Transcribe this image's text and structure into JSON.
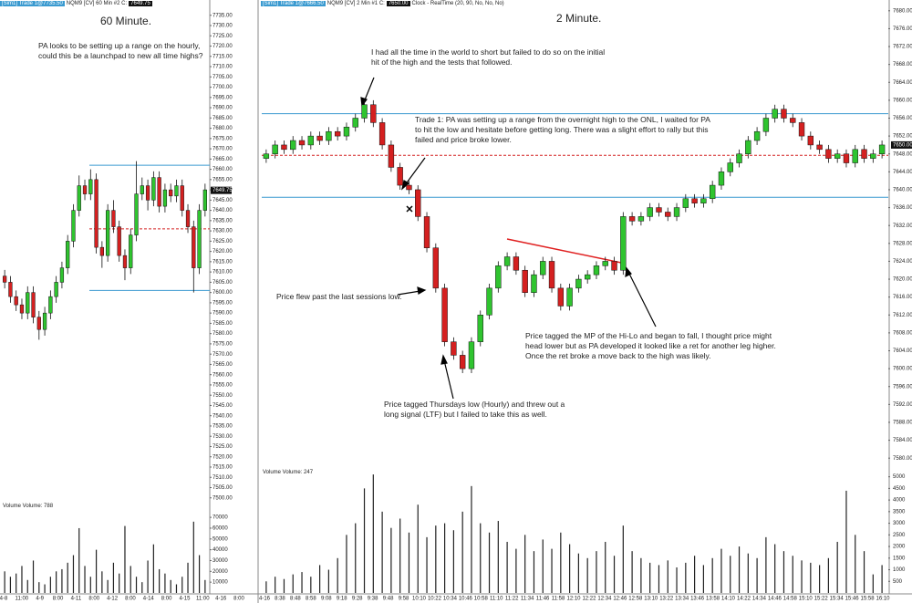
{
  "chart_data": [
    {
      "type": "candlestick",
      "title": "60 Minute.",
      "header": [
        "[Sim1] Trade 1@7735.50",
        "NQM9 [CV]  60 Min  #2  C:",
        "7649.75"
      ],
      "note": "PA looks to be setting up a range on the hourly, could this be a launchpad to new all time highs?",
      "colors": {
        "up": "#2fc42f",
        "down": "#d42020"
      },
      "open": [
        7608,
        7605,
        7598,
        7594,
        7590,
        7600,
        7588,
        7582,
        7590,
        7598,
        7605,
        7612,
        7625,
        7640,
        7652,
        7648,
        7655,
        7622,
        7618,
        7640,
        7632,
        7618,
        7612,
        7628,
        7648,
        7652,
        7645,
        7656,
        7642,
        7650,
        7647,
        7652,
        7640,
        7632,
        7612,
        7640
      ],
      "high": [
        7611,
        7608,
        7601,
        7597,
        7603,
        7603,
        7591,
        7593,
        7601,
        7608,
        7615,
        7628,
        7643,
        7657,
        7655,
        7660,
        7658,
        7625,
        7643,
        7645,
        7635,
        7621,
        7631,
        7664,
        7656,
        7655,
        7659,
        7659,
        7653,
        7653,
        7655,
        7655,
        7643,
        7635,
        7643,
        7653
      ],
      "low": [
        7602,
        7595,
        7591,
        7587,
        7587,
        7585,
        7577,
        7579,
        7587,
        7595,
        7602,
        7609,
        7622,
        7637,
        7645,
        7645,
        7619,
        7612,
        7615,
        7629,
        7615,
        7606,
        7609,
        7625,
        7645,
        7640,
        7642,
        7639,
        7639,
        7644,
        7644,
        7637,
        7629,
        7600,
        7609,
        7637
      ],
      "close": [
        7605,
        7598,
        7594,
        7590,
        7600,
        7588,
        7582,
        7590,
        7598,
        7605,
        7612,
        7625,
        7640,
        7652,
        7648,
        7655,
        7622,
        7618,
        7640,
        7632,
        7618,
        7612,
        7628,
        7648,
        7652,
        7645,
        7656,
        7642,
        7650,
        7647,
        7652,
        7640,
        7632,
        7612,
        7640,
        7650
      ],
      "ylim": [
        7499,
        7738
      ],
      "yticks": [
        {
          "value": 7500,
          "label": "7500.00"
        },
        {
          "value": 7505,
          "label": "7505.00"
        },
        {
          "value": 7510,
          "label": "7510.00"
        },
        {
          "value": 7515,
          "label": "7515.00"
        },
        {
          "value": 7520,
          "label": "7520.00"
        },
        {
          "value": 7525,
          "label": "7525.00"
        },
        {
          "value": 7530,
          "label": "7530.00"
        },
        {
          "value": 7535,
          "label": "7535.00"
        },
        {
          "value": 7540,
          "label": "7540.00"
        },
        {
          "value": 7545,
          "label": "7545.00"
        },
        {
          "value": 7550,
          "label": "7550.00"
        },
        {
          "value": 7555,
          "label": "7555.00"
        },
        {
          "value": 7560,
          "label": "7560.00"
        },
        {
          "value": 7565,
          "label": "7565.00"
        },
        {
          "value": 7570,
          "label": "7570.00"
        },
        {
          "value": 7575,
          "label": "7575.00"
        },
        {
          "value": 7580,
          "label": "7580.00"
        },
        {
          "value": 7585,
          "label": "7585.00"
        },
        {
          "value": 7590,
          "label": "7590.00"
        },
        {
          "value": 7595,
          "label": "7595.00"
        },
        {
          "value": 7600,
          "label": "7600.00"
        },
        {
          "value": 7605,
          "label": "7605.00"
        },
        {
          "value": 7610,
          "label": "7610.00"
        },
        {
          "value": 7615,
          "label": "7615.00"
        },
        {
          "value": 7620,
          "label": "7620.00"
        },
        {
          "value": 7625,
          "label": "7625.00"
        },
        {
          "value": 7630,
          "label": "7630.00"
        },
        {
          "value": 7635,
          "label": "7635.00"
        },
        {
          "value": 7640,
          "label": "7640.00"
        },
        {
          "value": 7645,
          "label": "7645.00"
        },
        {
          "value": 7650,
          "label": "7650.00"
        },
        {
          "value": 7655,
          "label": "7655.00"
        },
        {
          "value": 7660,
          "label": "7660.00"
        },
        {
          "value": 7665,
          "label": "7665.00"
        },
        {
          "value": 7670,
          "label": "7670.00"
        },
        {
          "value": 7675,
          "label": "7675.00"
        },
        {
          "value": 7680,
          "label": "7680.00"
        },
        {
          "value": 7685,
          "label": "7685.00"
        },
        {
          "value": 7690,
          "label": "7690.00"
        },
        {
          "value": 7695,
          "label": "7695.00"
        },
        {
          "value": 7700,
          "label": "7700.00"
        },
        {
          "value": 7705,
          "label": "7705.00"
        },
        {
          "value": 7710,
          "label": "7710.00"
        },
        {
          "value": 7715,
          "label": "7715.00"
        },
        {
          "value": 7720,
          "label": "7720.00"
        },
        {
          "value": 7725,
          "label": "7725.00"
        },
        {
          "value": 7730,
          "label": "7730.00"
        },
        {
          "value": 7735,
          "label": "7735.00"
        }
      ],
      "hlines": [
        {
          "value": 7662,
          "color": "#3a9ad0",
          "style": "solid"
        },
        {
          "value": 7601,
          "color": "#3a9ad0",
          "style": "solid"
        },
        {
          "value": 7631,
          "color": "#d42020",
          "style": "dashed"
        }
      ],
      "last_price": {
        "value": 7649.75,
        "label": "7649.75"
      },
      "volume": {
        "label": "Volume  Volume: 788",
        "color": "#222222",
        "values": [
          20000,
          15000,
          18000,
          25000,
          12000,
          30000,
          10000,
          8000,
          15000,
          20000,
          22000,
          28000,
          35000,
          60000,
          25000,
          15000,
          40000,
          20000,
          12000,
          28000,
          18000,
          62000,
          25000,
          15000,
          10000,
          30000,
          45000,
          22000,
          18000,
          12000,
          8000,
          15000,
          28000,
          66000,
          35000,
          12000
        ],
        "ylim": [
          0,
          76000
        ],
        "yticks": [
          10000,
          20000,
          30000,
          40000,
          50000,
          60000,
          70000
        ]
      },
      "xtick_labels": [
        "4-8",
        "11:00",
        "4-9",
        "8:00",
        "4-11",
        "8:00",
        "4-12",
        "8:00",
        "4-14",
        "8:00",
        "4-15",
        "11:00",
        "4-16",
        "8:00"
      ]
    },
    {
      "type": "candlestick",
      "title": "2 Minute.",
      "header": [
        "[Sim1] Trade 1@7666.50",
        "NQM9 [CV]  2 Min  #1  C:",
        "7650.00",
        "Clock - RealTime  (20, 90, No, No, No)"
      ],
      "colors": {
        "up": "#2fc42f",
        "down": "#d42020"
      },
      "open": [
        7647,
        7648,
        7650,
        7649,
        7651,
        7650,
        7652,
        7651,
        7653,
        7652,
        7654,
        7656,
        7659,
        7655,
        7650,
        7645,
        7641,
        7640,
        7634,
        7627,
        7618,
        7606,
        7603,
        7600,
        7606,
        7612,
        7618,
        7623,
        7625,
        7622,
        7617,
        7621,
        7624,
        7618,
        7614,
        7618,
        7620,
        7621,
        7623,
        7624,
        7622,
        7634,
        7633,
        7634,
        7636,
        7635,
        7634,
        7636,
        7638,
        7637,
        7638,
        7641,
        7644,
        7646,
        7648,
        7651,
        7653,
        7656,
        7658,
        7656,
        7655,
        7652,
        7650,
        7649,
        7647,
        7648,
        7646,
        7649,
        7647,
        7648
      ],
      "high": [
        7649,
        7651,
        7651,
        7652,
        7652,
        7653,
        7653,
        7654,
        7654,
        7655,
        7657,
        7660,
        7660,
        7656,
        7651,
        7646,
        7642,
        7641,
        7635,
        7628,
        7619,
        7607,
        7604,
        7607,
        7613,
        7619,
        7624,
        7626,
        7626,
        7623,
        7622,
        7625,
        7625,
        7619,
        7619,
        7621,
        7622,
        7624,
        7625,
        7625,
        7635,
        7635,
        7635,
        7637,
        7637,
        7636,
        7637,
        7639,
        7639,
        7639,
        7642,
        7645,
        7647,
        7649,
        7652,
        7654,
        7657,
        7659,
        7659,
        7657,
        7656,
        7653,
        7651,
        7650,
        7649,
        7649,
        7650,
        7650,
        7649,
        7651
      ],
      "low": [
        7646,
        7647,
        7648,
        7648,
        7649,
        7649,
        7650,
        7650,
        7651,
        7651,
        7653,
        7655,
        7654,
        7649,
        7644,
        7640,
        7639,
        7633,
        7626,
        7617,
        7605,
        7602,
        7599,
        7599,
        7605,
        7611,
        7617,
        7622,
        7621,
        7616,
        7616,
        7620,
        7617,
        7613,
        7613,
        7617,
        7619,
        7620,
        7622,
        7621,
        7621,
        7632,
        7632,
        7633,
        7634,
        7633,
        7633,
        7635,
        7636,
        7636,
        7637,
        7640,
        7643,
        7645,
        7647,
        7650,
        7652,
        7655,
        7655,
        7654,
        7651,
        7649,
        7648,
        7646,
        7646,
        7645,
        7645,
        7646,
        7646,
        7647
      ],
      "close": [
        7648,
        7650,
        7649,
        7651,
        7650,
        7652,
        7651,
        7653,
        7652,
        7654,
        7656,
        7659,
        7655,
        7650,
        7645,
        7641,
        7640,
        7634,
        7627,
        7618,
        7606,
        7603,
        7600,
        7606,
        7612,
        7618,
        7623,
        7625,
        7622,
        7617,
        7621,
        7624,
        7618,
        7614,
        7618,
        7620,
        7621,
        7623,
        7624,
        7622,
        7634,
        7633,
        7634,
        7636,
        7635,
        7634,
        7636,
        7638,
        7637,
        7638,
        7641,
        7644,
        7646,
        7648,
        7651,
        7653,
        7656,
        7658,
        7656,
        7655,
        7652,
        7650,
        7649,
        7647,
        7648,
        7646,
        7649,
        7647,
        7648,
        7650
      ],
      "ylim": [
        7578,
        7682
      ],
      "yticks": [
        {
          "value": 7580,
          "label": "7580.00"
        },
        {
          "value": 7584,
          "label": "7584.00"
        },
        {
          "value": 7588,
          "label": "7588.00"
        },
        {
          "value": 7592,
          "label": "7592.00"
        },
        {
          "value": 7596,
          "label": "7596.00"
        },
        {
          "value": 7600,
          "label": "7600.00"
        },
        {
          "value": 7604,
          "label": "7604.00"
        },
        {
          "value": 7608,
          "label": "7608.00"
        },
        {
          "value": 7612,
          "label": "7612.00"
        },
        {
          "value": 7616,
          "label": "7616.00"
        },
        {
          "value": 7620,
          "label": "7620.00"
        },
        {
          "value": 7624,
          "label": "7624.00"
        },
        {
          "value": 7628,
          "label": "7628.00"
        },
        {
          "value": 7632,
          "label": "7632.00"
        },
        {
          "value": 7636,
          "label": "7636.00"
        },
        {
          "value": 7640,
          "label": "7640.00"
        },
        {
          "value": 7644,
          "label": "7644.00"
        },
        {
          "value": 7648,
          "label": "7648.00"
        },
        {
          "value": 7652,
          "label": "7652.00"
        },
        {
          "value": 7656,
          "label": "7656.00"
        },
        {
          "value": 7660,
          "label": "7660.00"
        },
        {
          "value": 7664,
          "label": "7664.00"
        },
        {
          "value": 7668,
          "label": "7668.00"
        },
        {
          "value": 7672,
          "label": "7672.00"
        },
        {
          "value": 7676,
          "label": "7676.00"
        },
        {
          "value": 7680,
          "label": "7680.00"
        }
      ],
      "hlines": [
        {
          "value": 7657,
          "color": "#3a9ad0",
          "style": "solid"
        },
        {
          "value": 7638.3,
          "color": "#3a9ad0",
          "style": "solid"
        },
        {
          "value": 7647.7,
          "color": "#d42020",
          "style": "dashed"
        }
      ],
      "last_price": {
        "value": 7650,
        "label": "7650.00"
      },
      "volume": {
        "label": "Volume  Volume: 247",
        "color": "#222222",
        "values": [
          500,
          700,
          600,
          800,
          900,
          700,
          1200,
          1000,
          1500,
          2500,
          3000,
          4500,
          5100,
          3500,
          2800,
          3200,
          2600,
          3800,
          2400,
          2900,
          3000,
          2700,
          3500,
          4600,
          3000,
          2600,
          3100,
          2200,
          1900,
          2500,
          1800,
          2300,
          1900,
          2600,
          2100,
          1700,
          1500,
          1800,
          2200,
          1600,
          2900,
          1800,
          1500,
          1300,
          1200,
          1400,
          1100,
          1300,
          1600,
          1200,
          1500,
          1900,
          1600,
          2000,
          1700,
          1500,
          2400,
          2100,
          1800,
          1600,
          1400,
          1300,
          1200,
          1500,
          2200,
          4400,
          2500,
          1800,
          800,
          1200
        ],
        "ylim": [
          0,
          5300
        ],
        "yticks": [
          500,
          1000,
          1500,
          2000,
          2500,
          3000,
          3500,
          4000,
          4500,
          5000
        ]
      },
      "xtick_labels": [
        "4-16",
        "8:38",
        "8:48",
        "8:58",
        "9:08",
        "9:18",
        "9:28",
        "9:38",
        "9:48",
        "9:58",
        "10:10",
        "10:22",
        "10:34",
        "10:46",
        "10:58",
        "11:10",
        "11:22",
        "11:34",
        "11:46",
        "11:58",
        "12:10",
        "12:22",
        "12:34",
        "12:46",
        "12:58",
        "13:10",
        "13:22",
        "13:34",
        "13:46",
        "13:58",
        "14:10",
        "14:22",
        "14:34",
        "14:46",
        "14:58",
        "15:10",
        "15:22",
        "15:34",
        "15:46",
        "15:58",
        "16:10"
      ],
      "annotations": [
        "I had all the time in the world to short but failed to do so on the initial hit of the high and the tests that followed.",
        "Trade 1:  PA was setting up a range from the overnight high to the ONL, I waited for PA to hit the low and hesitate before getting long.  There was a slight effort to rally but this failed and price broke lower.",
        "Price flew past the last sessions low.",
        "Price tagged the MP of the Hi-Lo and began to fall, I thought price might head lower but as PA developed it looked like a ret for another leg higher.  Once the ret broke a move back to the high was likely.",
        "Price tagged Thursdays low (Hourly) and threw out a long signal (LTF) but I failed to take this as well."
      ]
    }
  ]
}
